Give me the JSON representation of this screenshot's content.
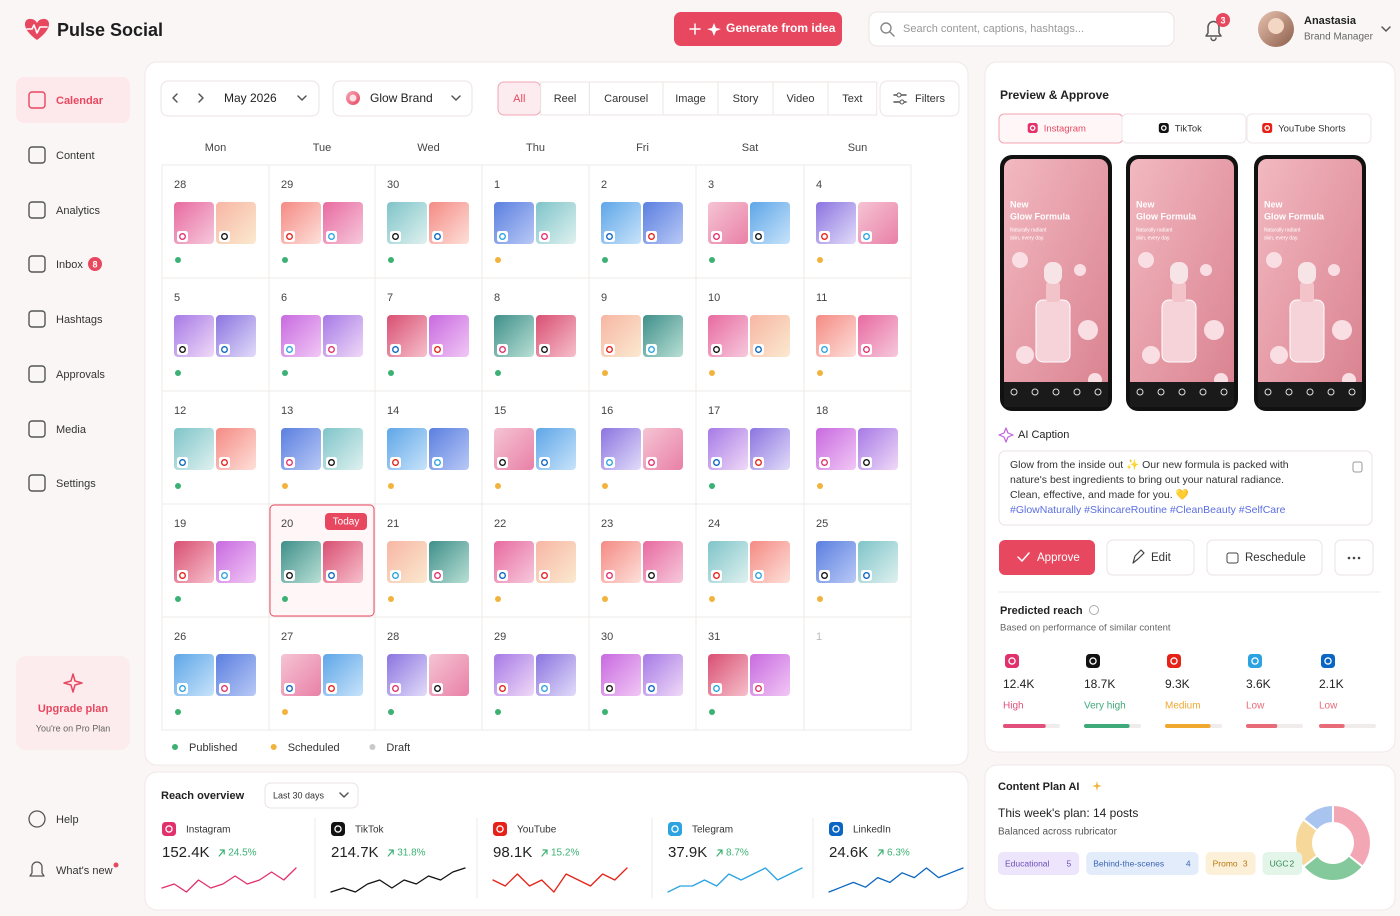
{
  "header": {
    "brand": "Pulse Social",
    "generate": "Generate from idea",
    "search": "Search content, captions, hashtags...",
    "notifications": "3",
    "user": "Anastasia",
    "role": "Brand Manager"
  },
  "sidebar": {
    "items": [
      {
        "label": "Calendar",
        "active": true
      },
      {
        "label": "Content"
      },
      {
        "label": "Analytics"
      },
      {
        "label": "Inbox",
        "badge": "8"
      },
      {
        "label": "Hashtags"
      },
      {
        "label": "Approvals"
      },
      {
        "label": "Media"
      },
      {
        "label": "Settings"
      }
    ],
    "upgrade": {
      "title": "Upgrade plan",
      "subtitle": "You're on Pro Plan"
    },
    "footer": [
      "Help",
      "What's new"
    ]
  },
  "calendar": {
    "month": "May 2026",
    "brand": "Glow Brand",
    "formats": [
      {
        "label": "All",
        "active": true
      },
      {
        "label": "Reel"
      },
      {
        "label": "Carousel"
      },
      {
        "label": "Image"
      },
      {
        "label": "Story"
      },
      {
        "label": "Video"
      },
      {
        "label": "Text"
      }
    ],
    "filters": "Filters",
    "weekdays": [
      "Mon",
      "Tue",
      "Wed",
      "Thu",
      "Fri",
      "Sat",
      "Sun"
    ],
    "legend": [
      {
        "label": "Published",
        "color": "#3bb273"
      },
      {
        "label": "Scheduled",
        "color": "#f2b33d"
      },
      {
        "label": "Draft",
        "color": "#c9c9c9"
      }
    ],
    "days": [
      {
        "day": "28",
        "status": "Published"
      },
      {
        "day": "29",
        "status": "Published"
      },
      {
        "day": "30",
        "status": "Published"
      },
      {
        "day": "1",
        "status": "Scheduled"
      },
      {
        "day": "2",
        "status": "Published"
      },
      {
        "day": "3",
        "status": "Published"
      },
      {
        "day": "4",
        "status": "Scheduled"
      },
      {
        "day": "5",
        "status": "Published"
      },
      {
        "day": "6",
        "status": "Published"
      },
      {
        "day": "7",
        "status": "Published"
      },
      {
        "day": "8",
        "status": "Published"
      },
      {
        "day": "9",
        "status": "Scheduled"
      },
      {
        "day": "10",
        "status": "Scheduled"
      },
      {
        "day": "11",
        "status": "Scheduled"
      },
      {
        "day": "12",
        "status": "Published"
      },
      {
        "day": "13",
        "status": "Scheduled"
      },
      {
        "day": "14",
        "status": "Scheduled"
      },
      {
        "day": "15",
        "status": "Scheduled"
      },
      {
        "day": "16",
        "status": "Scheduled"
      },
      {
        "day": "17",
        "status": "Published"
      },
      {
        "day": "18",
        "status": "Scheduled"
      },
      {
        "day": "19",
        "status": "Published"
      },
      {
        "day": "20",
        "status": "Published",
        "badge": "Today"
      },
      {
        "day": "21",
        "status": "Scheduled"
      },
      {
        "day": "22",
        "status": "Scheduled"
      },
      {
        "day": "23",
        "status": "Scheduled"
      },
      {
        "day": "24",
        "status": "Scheduled"
      },
      {
        "day": "25",
        "status": "Scheduled"
      },
      {
        "day": "26",
        "status": "Published"
      },
      {
        "day": "27",
        "status": "Scheduled"
      },
      {
        "day": "28",
        "status": "Published"
      },
      {
        "day": "29",
        "status": "Published"
      },
      {
        "day": "30",
        "status": "Published"
      },
      {
        "day": "31",
        "status": "Published"
      },
      {
        "day": "1",
        "status": null
      }
    ]
  },
  "reach_overview": {
    "title": "Reach overview",
    "period": "Last 30 days",
    "items": [
      {
        "name": "Instagram",
        "value": "152.4K",
        "change": "24.5%",
        "color": "#e1306c",
        "trend": [
          4,
          5,
          3,
          6,
          4,
          5,
          7,
          5,
          6,
          8,
          6,
          9
        ]
      },
      {
        "name": "TikTok",
        "value": "214.7K",
        "change": "31.8%",
        "color": "#111111",
        "trend": [
          3,
          4,
          3,
          5,
          6,
          4,
          6,
          5,
          7,
          6,
          8,
          9
        ]
      },
      {
        "name": "YouTube",
        "value": "98.1K",
        "change": "15.2%",
        "color": "#e62117",
        "trend": [
          5,
          4,
          6,
          4,
          5,
          3,
          6,
          5,
          4,
          6,
          5,
          7
        ]
      },
      {
        "name": "Telegram",
        "value": "37.9K",
        "change": "8.7%",
        "color": "#2aa3e0",
        "trend": [
          3,
          4,
          4,
          5,
          4,
          6,
          5,
          6,
          7,
          5,
          6,
          7
        ]
      },
      {
        "name": "LinkedIn",
        "value": "24.6K",
        "change": "6.3%",
        "color": "#0a66c2",
        "trend": [
          3,
          4,
          5,
          4,
          6,
          5,
          7,
          6,
          8,
          6,
          7,
          8
        ]
      }
    ]
  },
  "preview": {
    "title": "Preview & Approve",
    "tabs": [
      {
        "label": "Instagram",
        "color": "#e1306c",
        "active": true
      },
      {
        "label": "TikTok",
        "color": "#111111"
      },
      {
        "label": "YouTube Shorts",
        "color": "#e62117"
      }
    ],
    "headline": [
      "New",
      "Glow Formula"
    ],
    "subline": [
      "Naturally radiant",
      "skin, every day."
    ],
    "ai_caption": "AI Caption",
    "caption": [
      "Glow from the inside out ✨ Our new formula is packed with",
      "nature's best ingredients to bring out your natural radiance.",
      "Clean, effective, and made for you. 💛"
    ],
    "hashtags": "#GlowNaturally #SkincareRoutine #CleanBeauty #SelfCare",
    "actions": {
      "approve": "Approve",
      "edit": "Edit",
      "reschedule": "Reschedule"
    }
  },
  "predicted_reach": {
    "title": "Predicted reach",
    "subtitle": "Based on performance of similar content",
    "items": [
      {
        "value": "12.4K",
        "rating": "High",
        "color": "#e0507a",
        "platform_color": "#e1306c",
        "score": 75
      },
      {
        "value": "18.7K",
        "rating": "Very high",
        "color": "#3eaa7a",
        "platform_color": "#111111",
        "score": 80
      },
      {
        "value": "9.3K",
        "rating": "Medium",
        "color": "#f0a830",
        "platform_color": "#e62117",
        "score": 80
      },
      {
        "value": "3.6K",
        "rating": "Low",
        "color": "#e86b78",
        "platform_color": "#2aa3e0",
        "score": 55
      },
      {
        "value": "2.1K",
        "rating": "Low",
        "color": "#e86b78",
        "platform_color": "#0a66c2",
        "score": 45
      }
    ]
  },
  "content_plan": {
    "title": "Content Plan AI",
    "plan": "This week's plan: 14 posts",
    "subtitle": "Balanced across rubricator",
    "tags": [
      {
        "label": "Educational",
        "count": 5,
        "color": "#f3a7b5",
        "chip": "#ede5fb",
        "ink": "#6b4fb8"
      },
      {
        "label": "Behind-the-scenes",
        "count": 4,
        "color": "#84c99c",
        "chip": "#e3ecfb",
        "ink": "#3c64b4"
      },
      {
        "label": "Promo",
        "count": 3,
        "color": "#f6d99a",
        "chip": "#fdf0d8",
        "ink": "#b57a12"
      },
      {
        "label": "UGC",
        "count": 2,
        "color": "#a9c4ef",
        "chip": "#e3f4e9",
        "ink": "#2e8a55"
      }
    ]
  }
}
